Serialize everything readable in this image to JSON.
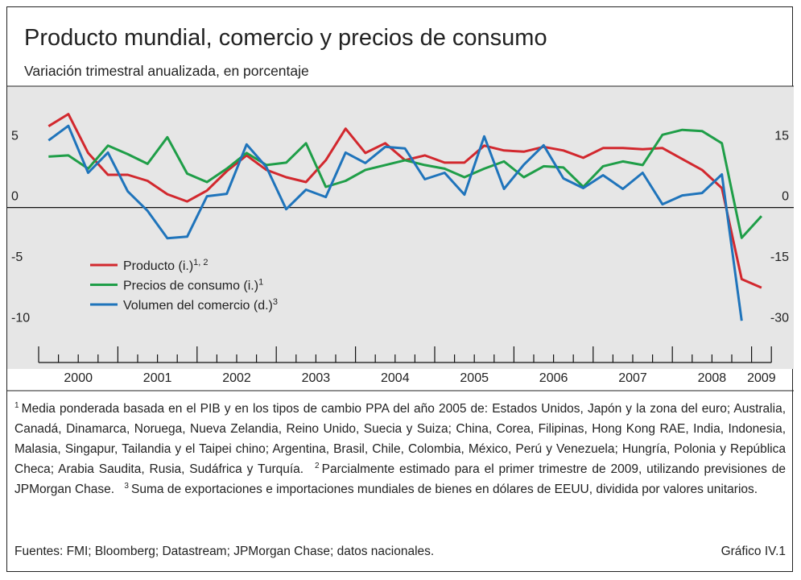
{
  "chart_data": {
    "type": "line",
    "title": "Producto mundial, comercio y precios de consumo",
    "subtitle": "Variación trimestral anualizada, en porcentaje",
    "categories": [
      "2000",
      null,
      null,
      null,
      "2001",
      null,
      null,
      null,
      "2002",
      null,
      null,
      null,
      "2003",
      null,
      null,
      null,
      "2004",
      null,
      null,
      null,
      "2005",
      null,
      null,
      null,
      "2006",
      null,
      null,
      null,
      "2007",
      null,
      null,
      null,
      "2008",
      null,
      null,
      null,
      "2009"
    ],
    "series": [
      {
        "name": "Producto (i.)",
        "note_ref": "1, 2",
        "color": "#d2282e",
        "axis": "y",
        "values": [
          6.7,
          7.7,
          4.5,
          2.7,
          2.7,
          2.2,
          1.1,
          0.5,
          1.4,
          3.0,
          4.3,
          3.1,
          2.5,
          2.1,
          3.9,
          6.5,
          4.5,
          5.3,
          3.9,
          4.3,
          3.7,
          3.7,
          5.1,
          4.7,
          4.6,
          5.0,
          4.7,
          4.1,
          4.9,
          4.9,
          4.8,
          4.9,
          4.0,
          3.1,
          1.6,
          -5.9,
          -6.6
        ]
      },
      {
        "name": "Precios de consumo (i.)",
        "note_ref": "1",
        "color": "#1f9e48",
        "axis": "y",
        "values": [
          4.2,
          4.3,
          3.2,
          5.1,
          4.4,
          3.6,
          5.8,
          2.8,
          2.1,
          3.2,
          4.5,
          3.5,
          3.7,
          5.3,
          1.7,
          2.2,
          3.1,
          3.5,
          3.9,
          3.5,
          3.2,
          2.5,
          3.2,
          3.8,
          2.5,
          3.4,
          3.3,
          1.7,
          3.4,
          3.8,
          3.5,
          6.0,
          6.4,
          6.3,
          5.3,
          -2.5,
          -0.7
        ]
      },
      {
        "name": "Volumen del comercio (d.)",
        "note_ref": "3",
        "color": "#1f74bb",
        "axis": "y2",
        "values": [
          16.6,
          20.2,
          8.6,
          13.6,
          4.0,
          -0.8,
          -7.6,
          -7.2,
          2.8,
          3.4,
          15.6,
          10.0,
          -0.4,
          4.4,
          2.6,
          13.6,
          11.0,
          15.0,
          14.6,
          7.0,
          8.6,
          3.2,
          17.6,
          4.6,
          10.6,
          15.4,
          7.2,
          4.8,
          8.0,
          4.6,
          8.6,
          0.8,
          3.0,
          3.6,
          8.2,
          -28.0,
          null
        ]
      }
    ],
    "ylim": [
      -13.3,
      10
    ],
    "yticks": [
      -10,
      -5,
      0,
      5
    ],
    "y2lim": [
      -39.9,
      30
    ],
    "y2ticks": [
      -30,
      -15,
      0,
      15
    ],
    "zero_line": true,
    "notes": [
      {
        "mark": "1",
        "text": "Media ponderada basada en el PIB y en los tipos de cambio PPA del año 2005 de: Estados Unidos, Japón y la zona del euro; Australia, Canadá, Dinamarca, Noruega, Nueva Zelandia, Reino Unido, Suecia y Suiza; China, Corea, Filipinas, Hong Kong RAE, India, Indonesia, Malasia, Singapur, Tailandia y el Taipei chino; Argentina, Brasil, Chile, Colombia, México, Perú y Venezuela; Hungría, Polonia y República Checa; Arabia Saudita, Rusia, Sudáfrica y Turquía."
      },
      {
        "mark": "2",
        "text": "Parcialmente estimado para el primer trimestre de 2009, utilizando previsiones de JPMorgan Chase."
      },
      {
        "mark": "3",
        "text": "Suma de exportaciones e importaciones mundiales de bienes en dólares de EEUU, dividida por valores unitarios."
      }
    ],
    "source": "Fuentes: FMI; Bloomberg; Datastream; JPMorgan Chase; datos nacionales.",
    "chart_id": "Gráfico IV.1"
  }
}
